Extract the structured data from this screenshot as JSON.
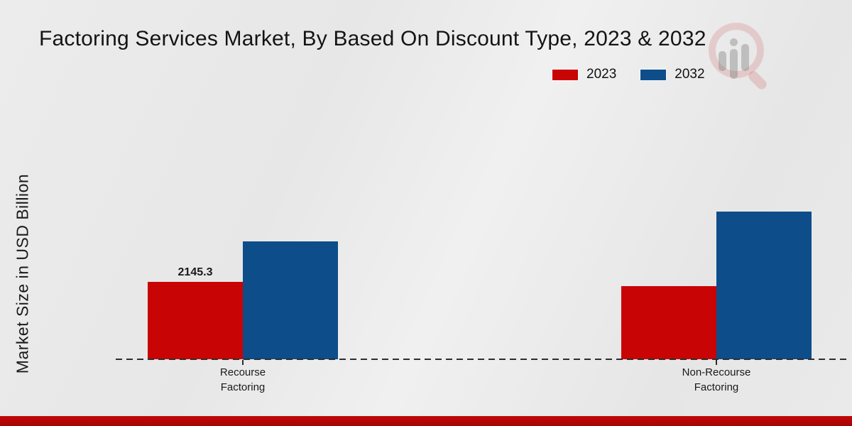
{
  "title": "Factoring Services Market, By Based On Discount Type, 2023 & 2032",
  "ylabel": "Market Size in USD Billion",
  "legend": [
    {
      "label": "2023",
      "color": "#c80404"
    },
    {
      "label": "2032",
      "color": "#0d4d8a"
    }
  ],
  "categories_display": [
    {
      "line1": "Recourse",
      "line2": "Factoring"
    },
    {
      "line1": "Non-Recourse",
      "line2": "Factoring"
    }
  ],
  "chart_data": {
    "type": "bar",
    "title": "Factoring Services Market, By Based On Discount Type, 2023 & 2032",
    "xlabel": "",
    "ylabel": "Market Size in USD Billion",
    "categories": [
      "Recourse Factoring",
      "Non-Recourse Factoring"
    ],
    "series": [
      {
        "name": "2023",
        "color": "#c80404",
        "values": [
          2145.3,
          2030
        ]
      },
      {
        "name": "2032",
        "color": "#0d4d8a",
        "values": [
          3270,
          4090
        ]
      }
    ],
    "bar_labels": [
      {
        "series_index": 0,
        "category_index": 0,
        "text": "2145.3"
      }
    ],
    "ylim": [
      0,
      7000
    ],
    "grid": false,
    "legend_position": "upper right",
    "baseline_style": "dashed"
  },
  "colors": {
    "background": "#e9e9e9",
    "footer": "#b50606",
    "axis": "#2e2e2e",
    "text": "#1a1a1a"
  }
}
